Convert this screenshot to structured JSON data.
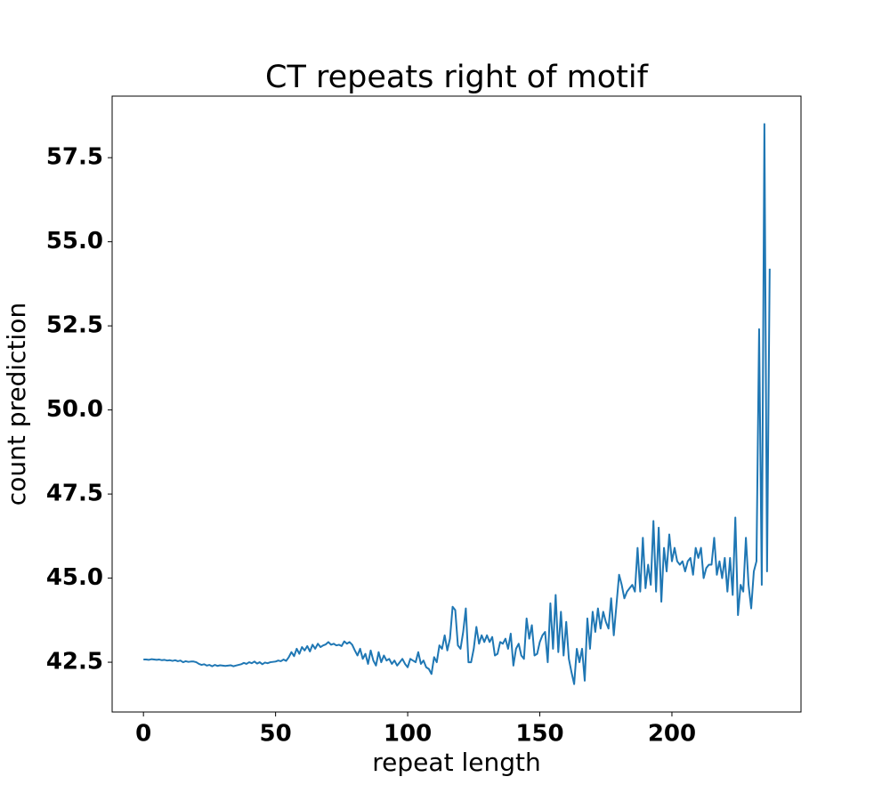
{
  "chart_data": {
    "type": "line",
    "title": "CT repeats right of motif",
    "x_label": "repeat length",
    "y_label": "count prediction",
    "x": [
      0,
      1,
      2,
      3,
      4,
      5,
      6,
      7,
      8,
      9,
      10,
      11,
      12,
      13,
      14,
      15,
      16,
      17,
      18,
      19,
      20,
      21,
      22,
      23,
      24,
      25,
      26,
      27,
      28,
      29,
      30,
      31,
      32,
      33,
      34,
      35,
      36,
      37,
      38,
      39,
      40,
      41,
      42,
      43,
      44,
      45,
      46,
      47,
      48,
      49,
      50,
      51,
      52,
      53,
      54,
      55,
      56,
      57,
      58,
      59,
      60,
      61,
      62,
      63,
      64,
      65,
      66,
      67,
      68,
      69,
      70,
      71,
      72,
      73,
      74,
      75,
      76,
      77,
      78,
      79,
      80,
      81,
      82,
      83,
      84,
      85,
      86,
      87,
      88,
      89,
      90,
      91,
      92,
      93,
      94,
      95,
      96,
      97,
      98,
      99,
      100,
      101,
      102,
      103,
      104,
      105,
      106,
      107,
      108,
      109,
      110,
      111,
      112,
      113,
      114,
      115,
      116,
      117,
      118,
      119,
      120,
      121,
      122,
      123,
      124,
      125,
      126,
      127,
      128,
      129,
      130,
      131,
      132,
      133,
      134,
      135,
      136,
      137,
      138,
      139,
      140,
      141,
      142,
      143,
      144,
      145,
      146,
      147,
      148,
      149,
      150,
      151,
      152,
      153,
      154,
      155,
      156,
      157,
      158,
      159,
      160,
      161,
      162,
      163,
      164,
      165,
      166,
      167,
      168,
      169,
      170,
      171,
      172,
      173,
      174,
      175,
      176,
      177,
      178,
      179,
      180,
      181,
      182,
      183,
      184,
      185,
      186,
      187,
      188,
      189,
      190,
      191,
      192,
      193,
      194,
      195,
      196,
      197,
      198,
      199,
      200,
      201,
      202,
      203,
      204,
      205,
      206,
      207,
      208,
      209,
      210,
      211,
      212,
      213,
      214,
      215,
      216,
      217,
      218,
      219,
      220,
      221,
      222,
      223,
      224,
      225,
      226,
      227,
      228,
      229,
      230,
      231,
      232,
      233,
      234,
      235,
      236,
      237
    ],
    "series": [
      {
        "color": "#1f77b4",
        "values": [
          42.58,
          42.58,
          42.57,
          42.59,
          42.58,
          42.57,
          42.58,
          42.56,
          42.57,
          42.55,
          42.56,
          42.54,
          42.56,
          42.53,
          42.55,
          42.5,
          42.53,
          42.51,
          42.52,
          42.52,
          42.5,
          42.45,
          42.42,
          42.44,
          42.4,
          42.42,
          42.38,
          42.42,
          42.39,
          42.41,
          42.4,
          42.39,
          42.4,
          42.41,
          42.38,
          42.4,
          42.42,
          42.44,
          42.48,
          42.45,
          42.5,
          42.47,
          42.52,
          42.46,
          42.5,
          42.44,
          42.49,
          42.47,
          42.5,
          42.51,
          42.52,
          42.55,
          42.53,
          42.58,
          42.54,
          42.65,
          42.8,
          42.68,
          42.9,
          42.75,
          42.95,
          42.85,
          42.98,
          42.82,
          43.02,
          42.9,
          43.05,
          42.95,
          43.0,
          43.03,
          43.1,
          43.02,
          43.05,
          43.0,
          43.02,
          42.98,
          43.12,
          43.05,
          43.1,
          43.02,
          42.85,
          42.7,
          42.9,
          42.6,
          42.75,
          42.45,
          42.85,
          42.55,
          42.4,
          42.8,
          42.5,
          42.7,
          42.55,
          42.6,
          42.45,
          42.55,
          42.4,
          42.5,
          42.6,
          42.45,
          42.35,
          42.6,
          42.55,
          42.5,
          42.8,
          42.45,
          42.55,
          42.35,
          42.3,
          42.15,
          42.65,
          42.5,
          43.0,
          42.9,
          43.3,
          42.85,
          43.2,
          44.15,
          44.05,
          43.0,
          42.9,
          43.4,
          44.1,
          42.5,
          42.5,
          42.9,
          43.55,
          43.05,
          43.3,
          43.1,
          43.3,
          43.1,
          43.25,
          42.7,
          42.75,
          43.1,
          43.05,
          43.2,
          42.9,
          43.35,
          42.4,
          42.9,
          43.05,
          42.7,
          42.6,
          43.8,
          43.2,
          43.6,
          42.7,
          42.75,
          43.1,
          43.3,
          43.4,
          42.5,
          44.25,
          42.9,
          44.5,
          42.8,
          44.0,
          42.7,
          43.7,
          42.6,
          42.2,
          41.85,
          42.9,
          42.5,
          42.9,
          41.95,
          43.8,
          42.9,
          44.0,
          43.4,
          44.1,
          43.5,
          44.0,
          43.7,
          43.5,
          44.4,
          43.3,
          44.2,
          45.1,
          44.8,
          44.4,
          44.6,
          44.7,
          44.8,
          44.6,
          45.9,
          44.6,
          46.2,
          44.7,
          45.4,
          44.8,
          46.7,
          44.6,
          46.5,
          44.3,
          45.9,
          45.2,
          46.3,
          45.5,
          45.9,
          45.5,
          45.4,
          45.5,
          45.2,
          45.5,
          45.6,
          45.1,
          45.9,
          45.6,
          45.9,
          45.0,
          45.3,
          45.4,
          45.4,
          46.2,
          45.1,
          45.5,
          45.0,
          45.6,
          44.6,
          45.6,
          44.5,
          46.8,
          43.9,
          44.8,
          44.6,
          46.2,
          44.8,
          44.1,
          45.2,
          45.5,
          52.4,
          44.8,
          58.5,
          45.2,
          54.2
        ]
      }
    ],
    "xlim": [
      -11.85,
      248.85
    ],
    "ylim": [
      41.02,
      59.33
    ],
    "xticks": [
      0,
      50,
      100,
      150,
      200
    ],
    "yticks": [
      42.5,
      {
        "value": 45,
        "label": "45.0"
      },
      47.5,
      {
        "value": 50,
        "label": "50.0"
      },
      52.5,
      {
        "value": 55,
        "label": "55.0"
      },
      57.5
    ],
    "grid": false
  }
}
